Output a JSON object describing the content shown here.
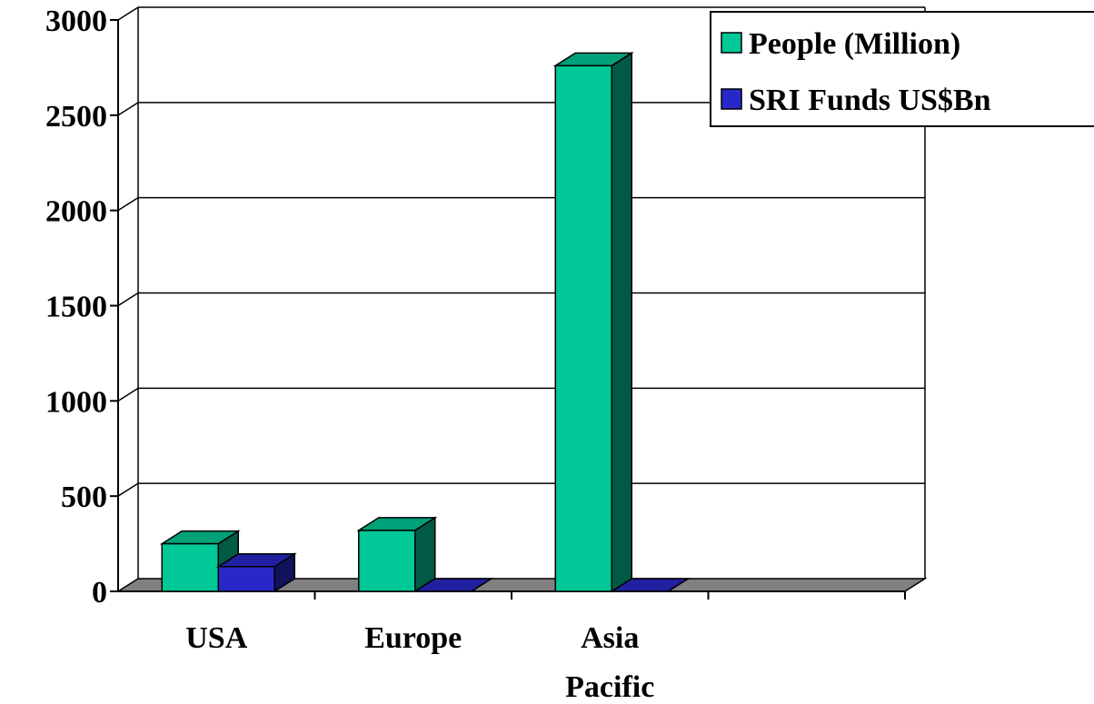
{
  "chart_data": {
    "type": "bar",
    "style": "3d-clustered-column",
    "categories": [
      "USA",
      "Europe",
      "Asia Pacific"
    ],
    "category_label_lines": [
      [
        "USA"
      ],
      [
        "Europe"
      ],
      [
        "Asia",
        "Pacific"
      ]
    ],
    "series": [
      {
        "name": "People (Million)",
        "values": [
          250,
          320,
          2760
        ],
        "color": "#00C896"
      },
      {
        "name": "SRI Funds US$Bn",
        "values": [
          130,
          0,
          0
        ],
        "color": "#2828C8"
      }
    ],
    "y_ticks": [
      "0",
      "500",
      "1000",
      "1500",
      "2000",
      "2500",
      "3000"
    ],
    "ylim": [
      0,
      3000
    ],
    "grid": true,
    "legend_position": "top-right",
    "floor_color": "#808080",
    "title": "",
    "xlabel": "",
    "ylabel": ""
  }
}
